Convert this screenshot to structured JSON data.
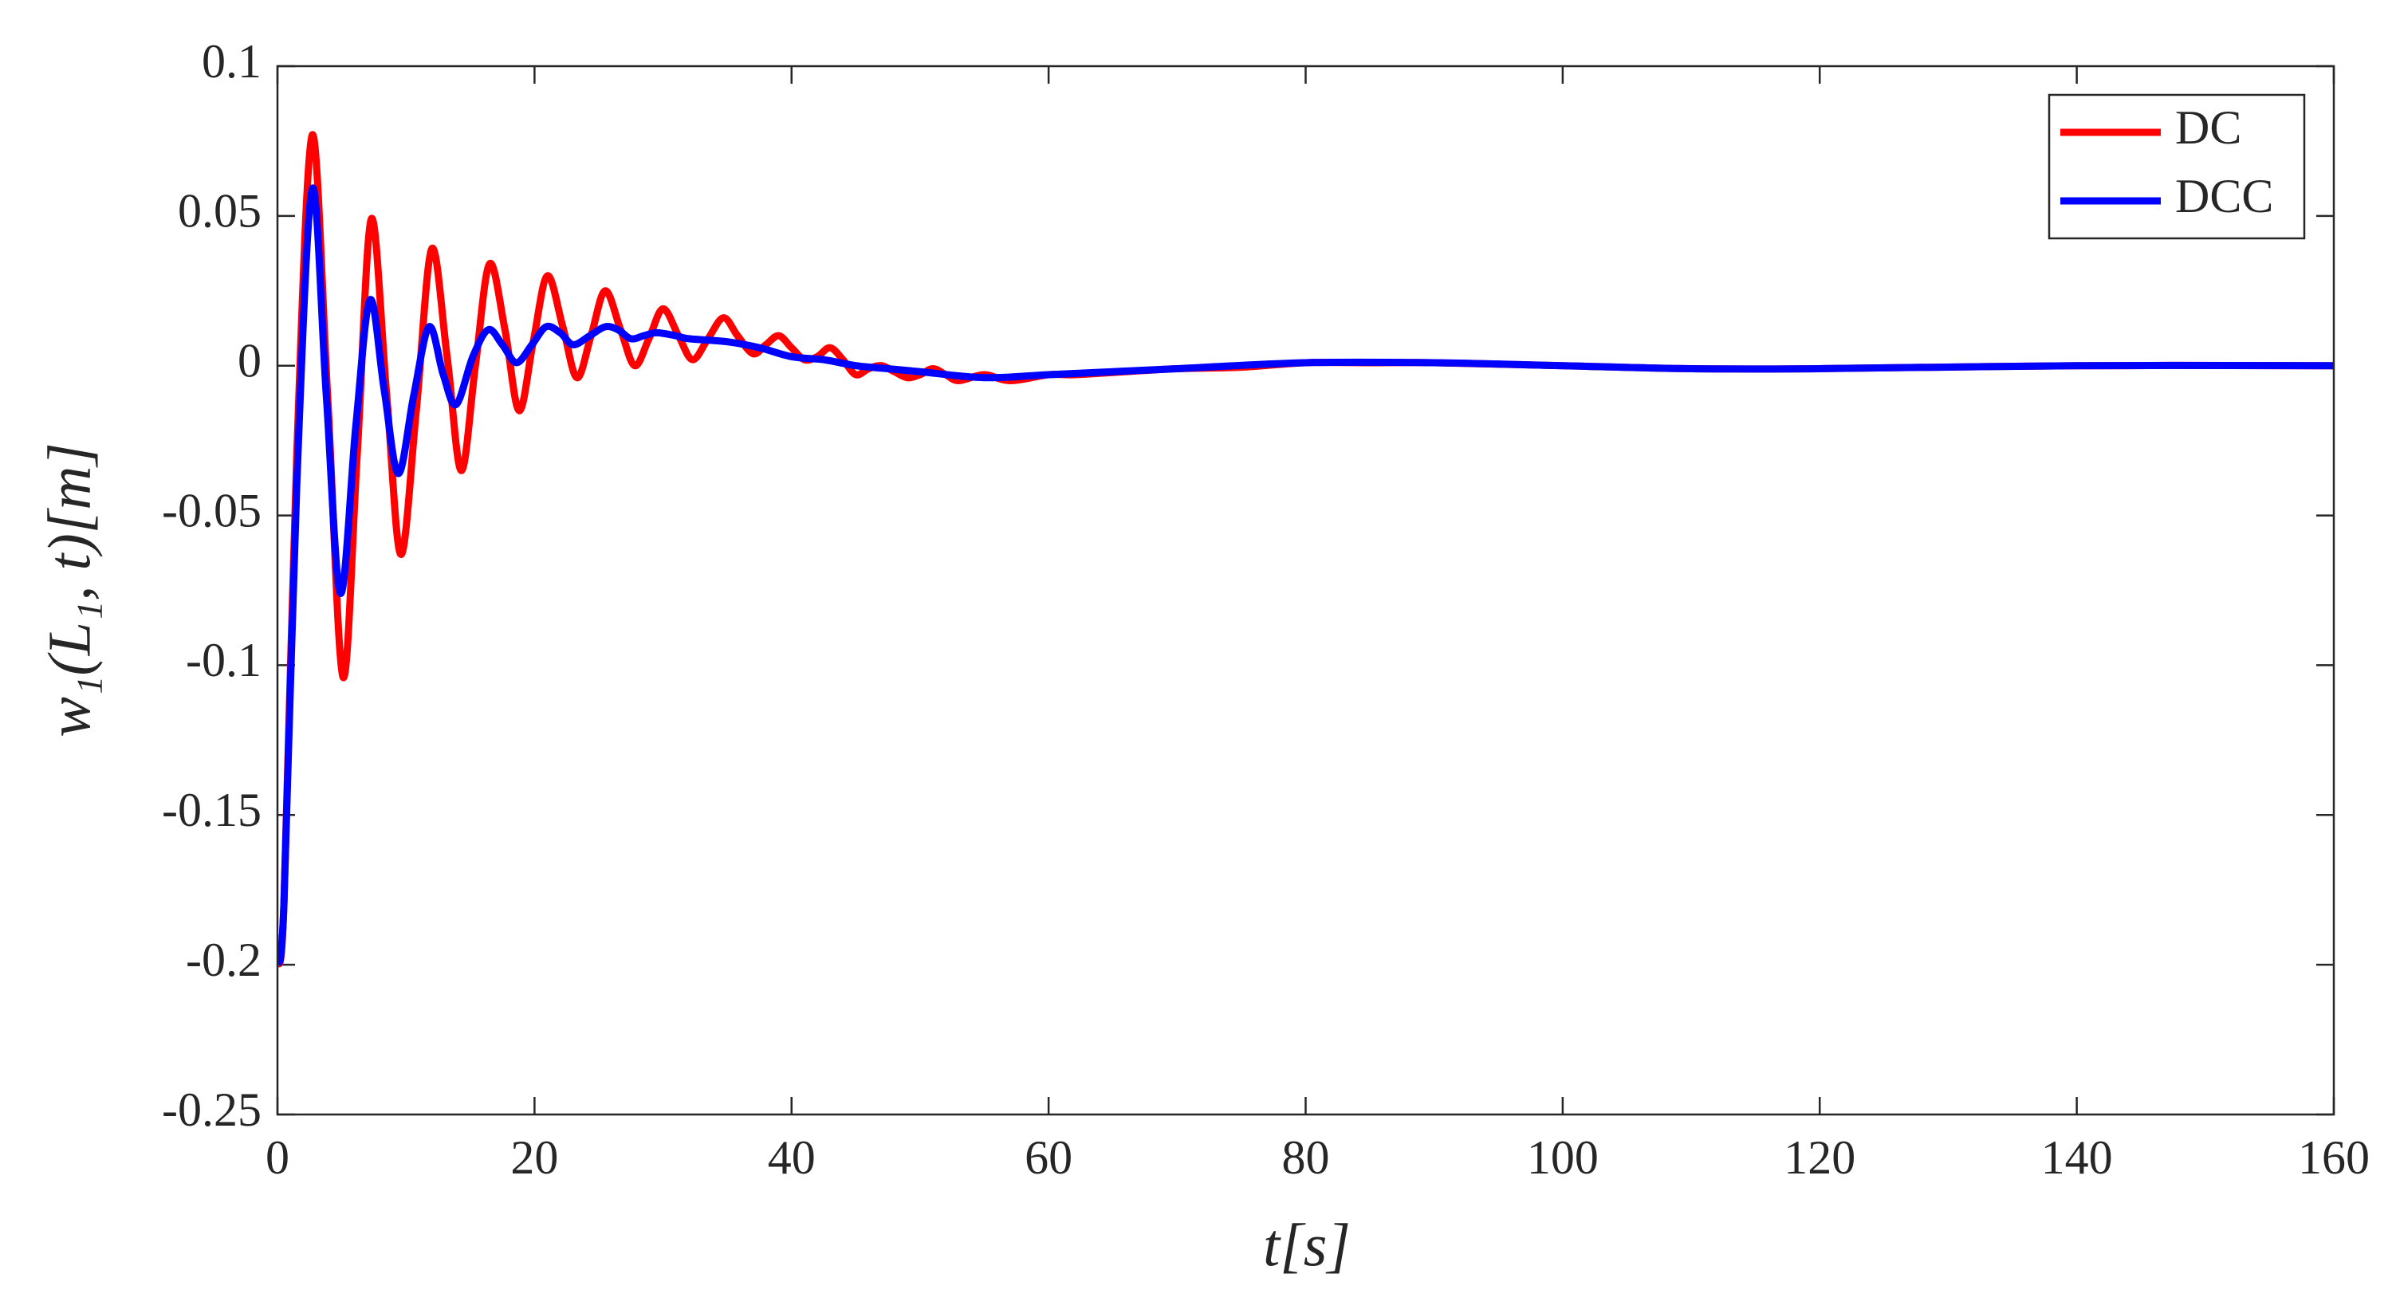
{
  "chart_data": {
    "type": "line",
    "xlabel": "t[s]",
    "ylabel": "w₁(L₁, t)[m]",
    "xlim": [
      0,
      160
    ],
    "ylim": [
      -0.25,
      0.1
    ],
    "xticks": [
      0,
      20,
      40,
      60,
      80,
      100,
      120,
      140,
      160
    ],
    "yticks": [
      -0.25,
      -0.2,
      -0.15,
      -0.1,
      -0.05,
      0,
      0.05,
      0.1
    ],
    "grid": false,
    "legend": "upper right",
    "series": [
      {
        "name": "DC",
        "color": "#ff0000",
        "x": [
          0,
          0.5,
          1.5,
          2.7,
          3.9,
          5.1,
          6.2,
          7.3,
          8.5,
          9.6,
          10.8,
          12,
          13.2,
          14.3,
          15.4,
          16.5,
          17.7,
          18.8,
          19.9,
          21,
          22.2,
          23.3,
          24.4,
          25.5,
          26.7,
          27.8,
          28.9,
          30,
          31.2,
          32.3,
          33.5,
          34.7,
          35.8,
          37,
          38,
          39,
          40,
          41,
          42,
          43,
          44,
          45,
          46,
          47,
          48,
          49,
          50,
          51,
          52,
          53,
          55,
          57,
          60,
          62,
          66,
          70,
          75,
          80,
          85,
          90,
          100,
          110,
          120,
          140,
          160
        ],
        "values": [
          -0.2,
          -0.18,
          -0.03,
          0.077,
          -0.01,
          -0.104,
          -0.03,
          0.049,
          -0.01,
          -0.063,
          -0.015,
          0.039,
          0.003,
          -0.035,
          0.0,
          0.034,
          0.012,
          -0.015,
          0.008,
          0.03,
          0.013,
          -0.004,
          0.01,
          0.025,
          0.012,
          0.0,
          0.009,
          0.019,
          0.01,
          0.002,
          0.009,
          0.016,
          0.01,
          0.004,
          0.007,
          0.01,
          0.006,
          0.002,
          0.003,
          0.006,
          0.002,
          -0.003,
          -0.001,
          0.0,
          -0.002,
          -0.004,
          -0.003,
          -0.001,
          -0.003,
          -0.005,
          -0.003,
          -0.005,
          -0.003,
          -0.003,
          -0.002,
          -0.001,
          -0.0005,
          0.001,
          0.001,
          0.001,
          0.0,
          -0.001,
          -0.001,
          0.0,
          0.0
        ]
      },
      {
        "name": "DCC",
        "color": "#0000ff",
        "x": [
          0,
          0.5,
          1.5,
          2.7,
          3.8,
          4.9,
          6.1,
          7.2,
          8.3,
          9.4,
          10.6,
          11.8,
          12.9,
          13.9,
          15.2,
          16.4,
          17.5,
          18.6,
          19.8,
          20.9,
          22,
          23,
          24.3,
          25.5,
          26.5,
          27.5,
          28.5,
          29.5,
          31,
          32,
          35,
          37.5,
          40,
          42.5,
          45,
          47.5,
          50,
          55,
          60,
          65,
          70,
          80,
          90,
          100,
          110,
          120,
          140,
          160
        ],
        "values": [
          -0.2,
          -0.18,
          -0.04,
          0.059,
          -0.01,
          -0.076,
          -0.02,
          0.022,
          -0.008,
          -0.036,
          -0.01,
          0.013,
          -0.003,
          -0.013,
          0.003,
          0.012,
          0.007,
          0.001,
          0.007,
          0.013,
          0.011,
          0.007,
          0.01,
          0.013,
          0.012,
          0.009,
          0.01,
          0.011,
          0.01,
          0.009,
          0.008,
          0.006,
          0.003,
          0.002,
          0.0,
          -0.001,
          -0.002,
          -0.004,
          -0.003,
          -0.002,
          -0.001,
          0.001,
          0.001,
          0.0,
          -0.001,
          -0.001,
          0.0,
          0.0
        ]
      }
    ]
  }
}
